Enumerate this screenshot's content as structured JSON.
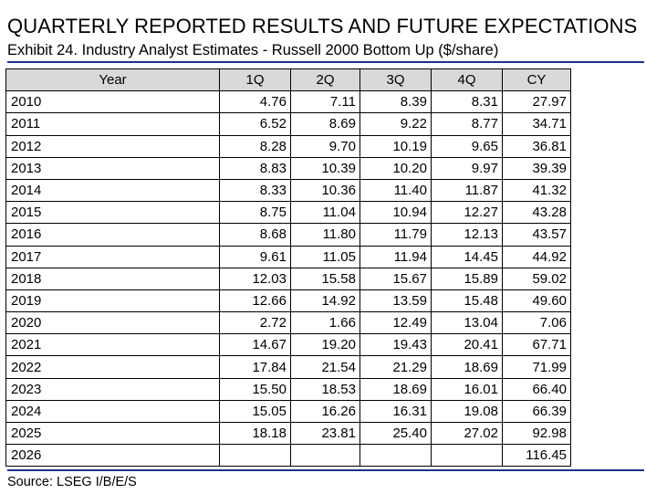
{
  "title": "QUARTERLY REPORTED RESULTS AND FUTURE EXPECTATIONS",
  "subtitle": "Exhibit 24. Industry Analyst Estimates - Russell 2000 Bottom Up ($/share)",
  "source": "Source: LSEG I/B/E/S",
  "colors": {
    "rule": "#1f2f8f",
    "header_bg": "#d9d9d9",
    "border": "#000000"
  },
  "chart_data": {
    "type": "table",
    "columns": [
      "Year",
      "1Q",
      "2Q",
      "3Q",
      "4Q",
      "CY"
    ],
    "rows": [
      [
        "2010",
        "4.76",
        "7.11",
        "8.39",
        "8.31",
        "27.97"
      ],
      [
        "2011",
        "6.52",
        "8.69",
        "9.22",
        "8.77",
        "34.71"
      ],
      [
        "2012",
        "8.28",
        "9.70",
        "10.19",
        "9.65",
        "36.81"
      ],
      [
        "2013",
        "8.83",
        "10.39",
        "10.20",
        "9.97",
        "39.39"
      ],
      [
        "2014",
        "8.33",
        "10.36",
        "11.40",
        "11.87",
        "41.32"
      ],
      [
        "2015",
        "8.75",
        "11.04",
        "10.94",
        "12.27",
        "43.28"
      ],
      [
        "2016",
        "8.68",
        "11.80",
        "11.79",
        "12.13",
        "43.57"
      ],
      [
        "2017",
        "9.61",
        "11.05",
        "11.94",
        "14.45",
        "44.92"
      ],
      [
        "2018",
        "12.03",
        "15.58",
        "15.67",
        "15.89",
        "59.02"
      ],
      [
        "2019",
        "12.66",
        "14.92",
        "13.59",
        "15.48",
        "49.60"
      ],
      [
        "2020",
        "2.72",
        "1.66",
        "12.49",
        "13.04",
        "7.06"
      ],
      [
        "2021",
        "14.67",
        "19.20",
        "19.43",
        "20.41",
        "67.71"
      ],
      [
        "2022",
        "17.84",
        "21.54",
        "21.29",
        "18.69",
        "71.99"
      ],
      [
        "2023",
        "15.50",
        "18.53",
        "18.69",
        "16.01",
        "66.40"
      ],
      [
        "2024",
        "15.05",
        "16.26",
        "16.31",
        "19.08",
        "66.39"
      ],
      [
        "2025",
        "18.18",
        "23.81",
        "25.40",
        "27.02",
        "92.98"
      ],
      [
        "2026",
        "",
        "",
        "",
        "",
        "116.45"
      ]
    ]
  }
}
